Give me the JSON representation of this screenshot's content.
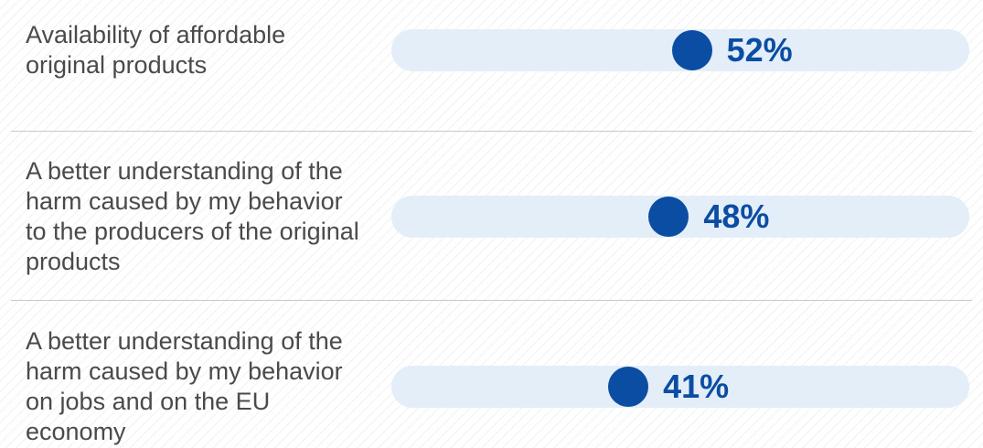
{
  "chart_data": {
    "type": "dot",
    "categories": [
      "Availability of affordable original products",
      "A better understanding of the harm caused by my behavior to the producers of the original products",
      "A better understanding of the harm caused by my behavior on jobs and on the EU economy"
    ],
    "values": [
      52,
      48,
      41
    ],
    "value_labels": [
      "52%",
      "48%",
      "41%"
    ],
    "color": "#0b4da2",
    "xlim": [
      0,
      100
    ]
  }
}
